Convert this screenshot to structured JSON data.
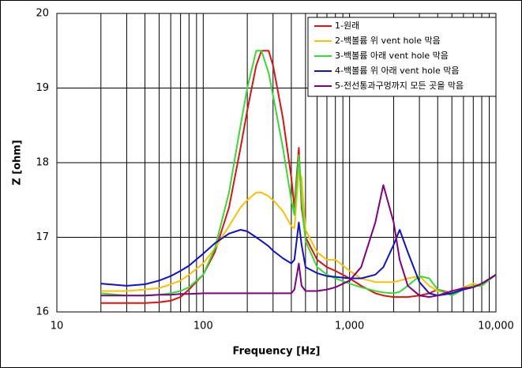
{
  "chart_data": {
    "type": "line",
    "x_label": "Frequency [Hz]",
    "y_label": "Z [ohm]",
    "x_scale": "log",
    "grid": true,
    "legend": "top-right",
    "xlim": [
      10,
      10000
    ],
    "ylim": [
      16,
      20
    ],
    "xticks": [
      10,
      100,
      {
        "value": 1000,
        "label": "1,000"
      },
      {
        "value": 10000,
        "label": "10,000"
      }
    ],
    "yticks": [
      16,
      17,
      18,
      19,
      20
    ],
    "x": [
      20,
      30,
      40,
      50,
      60,
      70,
      80,
      100,
      120,
      150,
      180,
      200,
      230,
      250,
      280,
      300,
      350,
      400,
      420,
      450,
      470,
      500,
      600,
      700,
      800,
      1000,
      1200,
      1500,
      1700,
      2000,
      2200,
      2500,
      3000,
      3500,
      4000,
      5000,
      6000,
      7000,
      8000,
      10000
    ],
    "series": [
      {
        "name": "1-원래",
        "color": "#e41010",
        "values": [
          16.12,
          16.12,
          16.12,
          16.13,
          16.15,
          16.2,
          16.3,
          16.5,
          16.8,
          17.4,
          18.2,
          18.7,
          19.3,
          19.5,
          19.5,
          19.3,
          18.6,
          17.8,
          17.4,
          18.2,
          17.4,
          17.0,
          16.7,
          16.6,
          16.55,
          16.45,
          16.35,
          16.25,
          16.22,
          16.2,
          16.2,
          16.2,
          16.22,
          16.25,
          16.3,
          16.25,
          16.3,
          16.35,
          16.35,
          16.5
        ]
      },
      {
        "name": "2-백볼륨 위 vent hole 막음",
        "color": "#ffc000",
        "values": [
          16.28,
          16.28,
          16.3,
          16.32,
          16.37,
          16.42,
          16.5,
          16.65,
          16.85,
          17.15,
          17.4,
          17.5,
          17.6,
          17.6,
          17.55,
          17.5,
          17.35,
          17.15,
          17.12,
          17.9,
          17.8,
          17.1,
          16.8,
          16.7,
          16.7,
          16.55,
          16.45,
          16.4,
          16.4,
          16.4,
          16.42,
          16.45,
          16.48,
          16.35,
          16.28,
          16.25,
          16.33,
          16.38,
          16.35,
          16.5
        ]
      },
      {
        "name": "3-백볼륨 아래 vent hole 막음",
        "color": "#33dd33",
        "values": [
          16.25,
          16.22,
          16.22,
          16.23,
          16.25,
          16.28,
          16.33,
          16.5,
          16.85,
          17.6,
          18.5,
          19.0,
          19.5,
          19.5,
          19.2,
          18.9,
          18.2,
          17.5,
          17.3,
          18.1,
          17.5,
          16.95,
          16.6,
          16.5,
          16.45,
          16.38,
          16.33,
          16.28,
          16.26,
          16.25,
          16.27,
          16.35,
          16.48,
          16.45,
          16.3,
          16.22,
          16.3,
          16.35,
          16.35,
          16.5
        ]
      },
      {
        "name": "4-백볼륨 위 아래 vent hole 막음",
        "color": "#1010d0",
        "values": [
          16.38,
          16.35,
          16.37,
          16.42,
          16.48,
          16.55,
          16.62,
          16.78,
          16.92,
          17.05,
          17.1,
          17.08,
          17.0,
          16.95,
          16.88,
          16.82,
          16.72,
          16.65,
          16.7,
          17.2,
          16.9,
          16.6,
          16.52,
          16.48,
          16.47,
          16.45,
          16.45,
          16.5,
          16.6,
          16.9,
          17.1,
          16.8,
          16.4,
          16.25,
          16.22,
          16.25,
          16.3,
          16.33,
          16.38,
          16.5
        ]
      },
      {
        "name": "5-전선통과구멍까지 모든 곳을 막음",
        "color": "#800080",
        "values": [
          16.22,
          16.22,
          16.22,
          16.23,
          16.23,
          16.24,
          16.24,
          16.25,
          16.25,
          16.25,
          16.25,
          16.25,
          16.25,
          16.25,
          16.25,
          16.25,
          16.25,
          16.25,
          16.3,
          16.65,
          16.35,
          16.28,
          16.28,
          16.3,
          16.33,
          16.42,
          16.6,
          17.2,
          17.7,
          17.2,
          16.7,
          16.35,
          16.22,
          16.2,
          16.22,
          16.28,
          16.32,
          16.33,
          16.38,
          16.5
        ]
      }
    ]
  }
}
